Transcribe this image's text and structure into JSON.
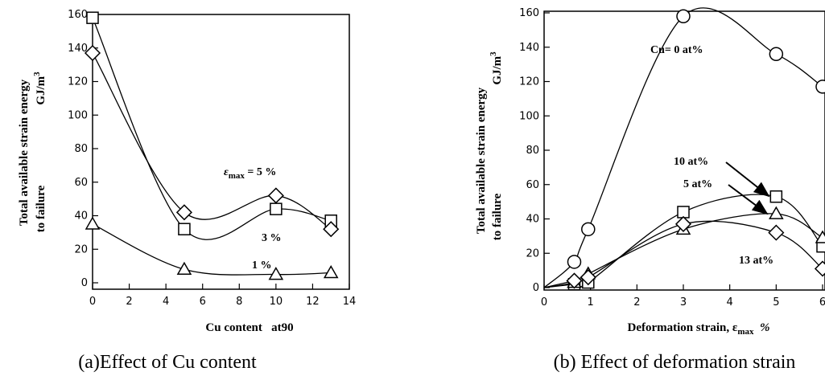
{
  "chart_data": [
    {
      "type": "line",
      "caption": "(a)Effect of Cu content",
      "xlabel": "Cu content   at90",
      "ylabel_line1": "Total available strain energy",
      "ylabel_line2": "to failure",
      "ylabel_unit": "GJ/m",
      "ylabel_unit_sup": "3",
      "xlim": [
        0,
        14
      ],
      "ylim": [
        0,
        160
      ],
      "xticks": [
        "0",
        "2",
        "4",
        "6",
        "8",
        "10",
        "12",
        "14"
      ],
      "yticks": [
        "0",
        "20",
        "40",
        "60",
        "80",
        "100",
        "120",
        "140",
        "160"
      ],
      "series": [
        {
          "name": "5 %",
          "label_prefix": "ε",
          "label_sub": "max",
          "label_suffix": " = 5 %",
          "marker": "square",
          "x": [
            0,
            5,
            10,
            13
          ],
          "y": [
            158,
            32,
            44,
            37
          ]
        },
        {
          "name": "3 %",
          "marker": "diamond",
          "x": [
            0,
            5,
            10,
            13
          ],
          "y": [
            137,
            42,
            52,
            32
          ]
        },
        {
          "name": "1 %",
          "marker": "triangle",
          "x": [
            0,
            5,
            10,
            13
          ],
          "y": [
            35,
            8,
            5,
            6
          ]
        }
      ]
    },
    {
      "type": "line",
      "caption": "(b) Effect of deformation strain",
      "xlabel_prefix": "Deformation strain, ε",
      "xlabel_sub": "max",
      "xlabel_suffix": "  %",
      "ylabel_line1": "Total available strain energy",
      "ylabel_line2": "to failure",
      "ylabel_unit": "GJ/m",
      "ylabel_unit_sup": "3",
      "xlim": [
        0,
        6
      ],
      "ylim": [
        0,
        160
      ],
      "xticks": [
        "0",
        "1",
        "2",
        "3",
        "4",
        "5",
        "6"
      ],
      "yticks": [
        "0",
        "20",
        "40",
        "60",
        "80",
        "100",
        "120",
        "140",
        "160"
      ],
      "series": [
        {
          "name": "Cu= 0 at%",
          "marker": "circle",
          "x": [
            0.65,
            0.95,
            3,
            5,
            6
          ],
          "y": [
            15,
            34,
            158,
            136,
            117
          ]
        },
        {
          "name": "10 at%",
          "marker": "square",
          "x": [
            0.65,
            0.95,
            3,
            5,
            6
          ],
          "y": [
            2,
            3,
            44,
            53,
            24
          ]
        },
        {
          "name": "5 at%",
          "marker": "triangle",
          "x": [
            0.65,
            0.95,
            3,
            5,
            6
          ],
          "y": [
            3,
            8,
            34,
            43,
            29
          ]
        },
        {
          "name": "13 at%",
          "marker": "diamond",
          "x": [
            0.65,
            0.95,
            3,
            5,
            6
          ],
          "y": [
            4,
            6,
            37,
            32,
            11
          ]
        }
      ]
    }
  ]
}
